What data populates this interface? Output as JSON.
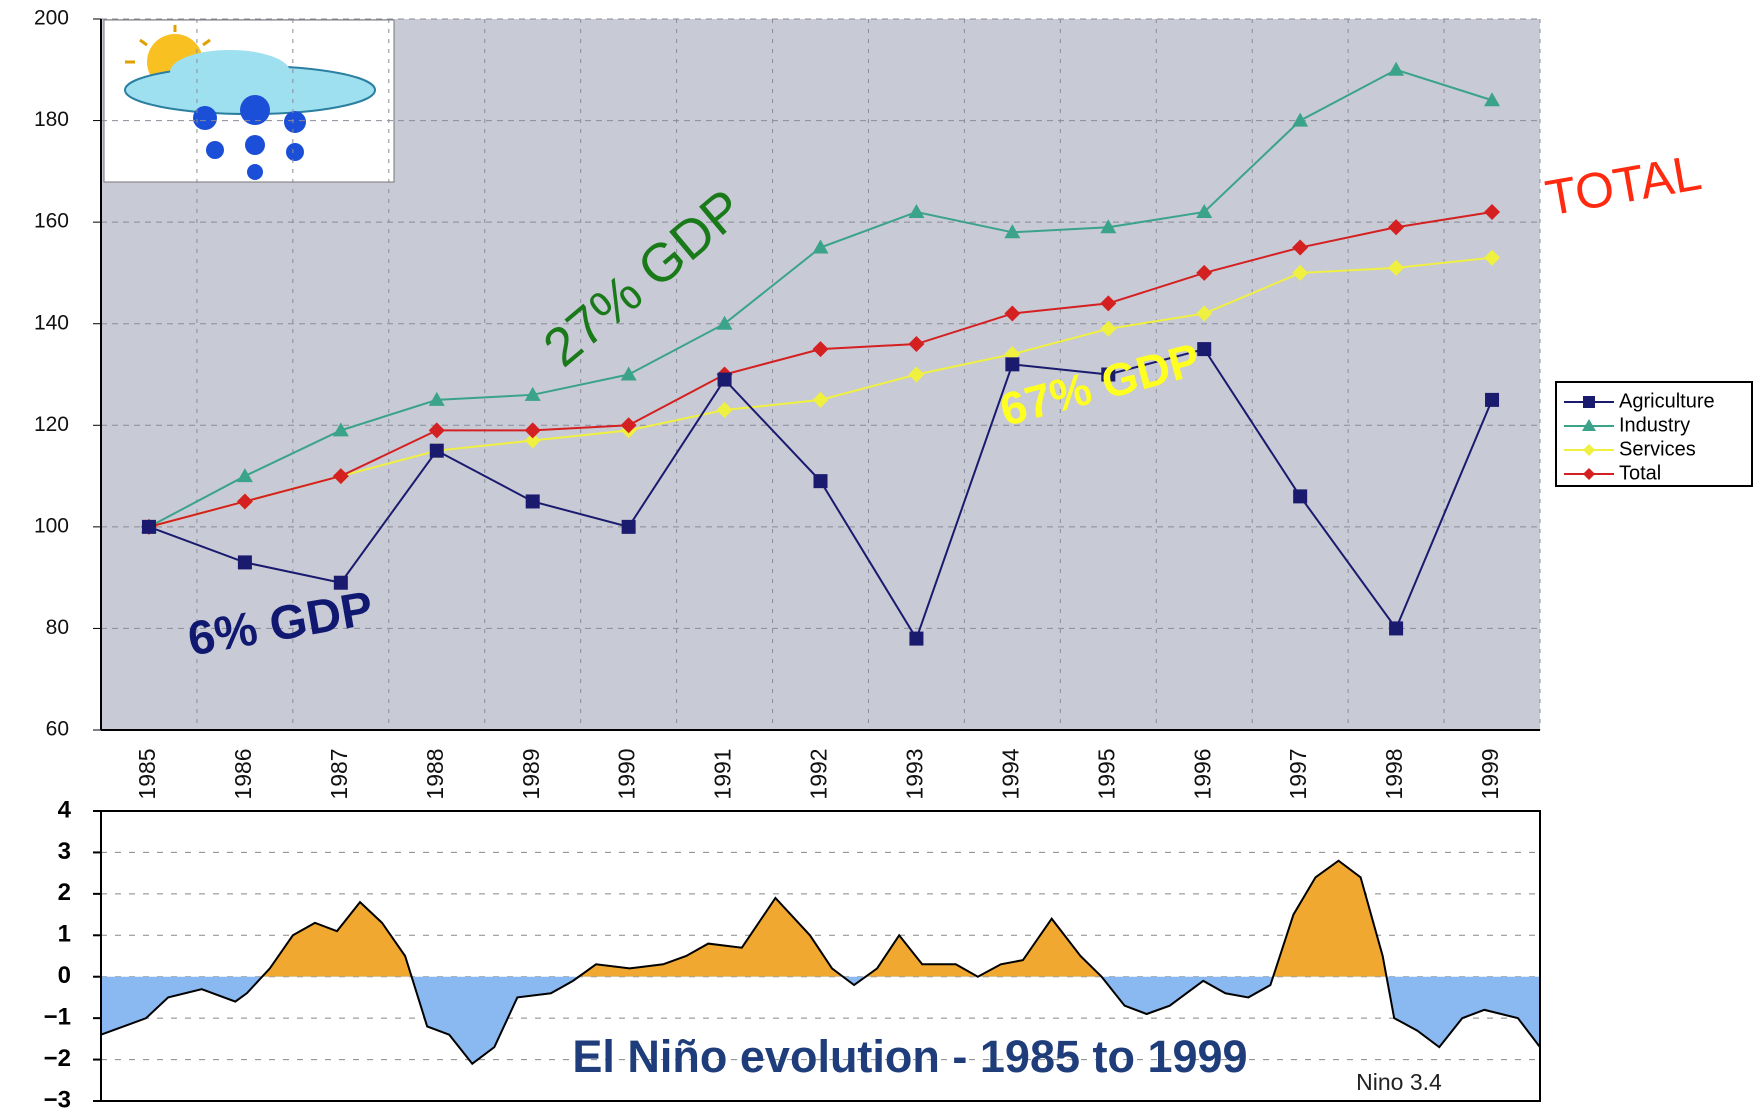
{
  "chart_data": [
    {
      "type": "line",
      "categories": [
        "1985",
        "1986",
        "1987",
        "1988",
        "1989",
        "1990",
        "1991",
        "1992",
        "1993",
        "1994",
        "1995",
        "1996",
        "1997",
        "1998",
        "1999"
      ],
      "series": [
        {
          "name": "Agriculture",
          "color": "#1a1a6e",
          "marker": "square",
          "values": [
            100,
            93,
            89,
            115,
            105,
            100,
            129,
            109,
            78,
            132,
            130,
            135,
            106,
            80,
            125
          ]
        },
        {
          "name": "Industry",
          "color": "#3aa38a",
          "marker": "triangle",
          "values": [
            100,
            110,
            119,
            125,
            126,
            130,
            140,
            155,
            162,
            158,
            159,
            162,
            180,
            190,
            184
          ]
        },
        {
          "name": "Services",
          "color": "#f0f040",
          "marker": "diamond",
          "values": [
            100,
            105,
            110,
            115,
            117,
            119,
            123,
            125,
            130,
            134,
            139,
            142,
            150,
            151,
            153
          ]
        },
        {
          "name": "Total",
          "color": "#d42020",
          "marker": "diamond",
          "values": [
            100,
            105,
            110,
            119,
            119,
            120,
            130,
            135,
            136,
            142,
            144,
            150,
            155,
            159,
            162
          ]
        }
      ],
      "ylim": [
        60,
        200
      ],
      "yticks": [
        60,
        80,
        100,
        120,
        140,
        160,
        180,
        200
      ],
      "grid": true,
      "legend": "right",
      "annotations": [
        {
          "text": "27%  GDP",
          "color": "#1a7a1a"
        },
        {
          "text": "TOTAL",
          "color": "#ff2a10"
        },
        {
          "text": "67% GDP",
          "color": "#ffff20"
        },
        {
          "text": "6% GDP",
          "color": "#101870"
        }
      ]
    },
    {
      "type": "area",
      "title": "El Niño evolution - 1985 to 1999",
      "label": "Nino 3.4",
      "x": [
        1984.5,
        1984.97,
        1985.2,
        1985.55,
        1985.9,
        1986.02,
        1986.26,
        1986.5,
        1986.73,
        1986.96,
        1987.2,
        1987.43,
        1987.67,
        1987.9,
        1988.13,
        1988.37,
        1988.6,
        1988.84,
        1989.19,
        1989.42,
        1989.66,
        1990.01,
        1990.36,
        1990.6,
        1990.83,
        1991.18,
        1991.53,
        1991.89,
        1992.12,
        1992.35,
        1992.59,
        1992.82,
        1993.06,
        1993.41,
        1993.64,
        1993.88,
        1994.11,
        1994.41,
        1994.71,
        1994.93,
        1995.17,
        1995.4,
        1995.64,
        1995.99,
        1996.22,
        1996.46,
        1996.69,
        1996.93,
        1997.16,
        1997.4,
        1997.63,
        1997.86,
        1997.98,
        1998.22,
        1998.45,
        1998.69,
        1998.92,
        1999.27,
        1999.5
      ],
      "values": [
        -1.4,
        -1.0,
        -0.5,
        -0.3,
        -0.6,
        -0.4,
        0.2,
        1.0,
        1.3,
        1.1,
        1.8,
        1.3,
        0.5,
        -1.2,
        -1.4,
        -2.1,
        -1.7,
        -0.5,
        -0.4,
        -0.1,
        0.3,
        0.2,
        0.3,
        0.5,
        0.8,
        0.7,
        1.9,
        1.0,
        0.2,
        -0.2,
        0.2,
        1.0,
        0.3,
        0.3,
        0.0,
        0.3,
        0.4,
        1.4,
        0.5,
        0.0,
        -0.7,
        -0.9,
        -0.7,
        -0.1,
        -0.4,
        -0.5,
        -0.2,
        1.5,
        2.4,
        2.8,
        2.4,
        0.5,
        -1.0,
        -1.3,
        -1.7,
        -1.0,
        -0.8,
        -1.0,
        -1.7
      ],
      "colors": {
        "positive": "#f0a830",
        "negative": "#8ab8f0",
        "line": "#000000"
      },
      "xlim": [
        1984.5,
        1999.5
      ],
      "ylim": [
        -3,
        4
      ],
      "yticks": [
        {
          "value": -3,
          "label": "−3"
        },
        {
          "value": -2,
          "label": "−2"
        },
        {
          "value": -1,
          "label": "−1"
        },
        0,
        1,
        2,
        3,
        4
      ],
      "grid": true
    }
  ]
}
